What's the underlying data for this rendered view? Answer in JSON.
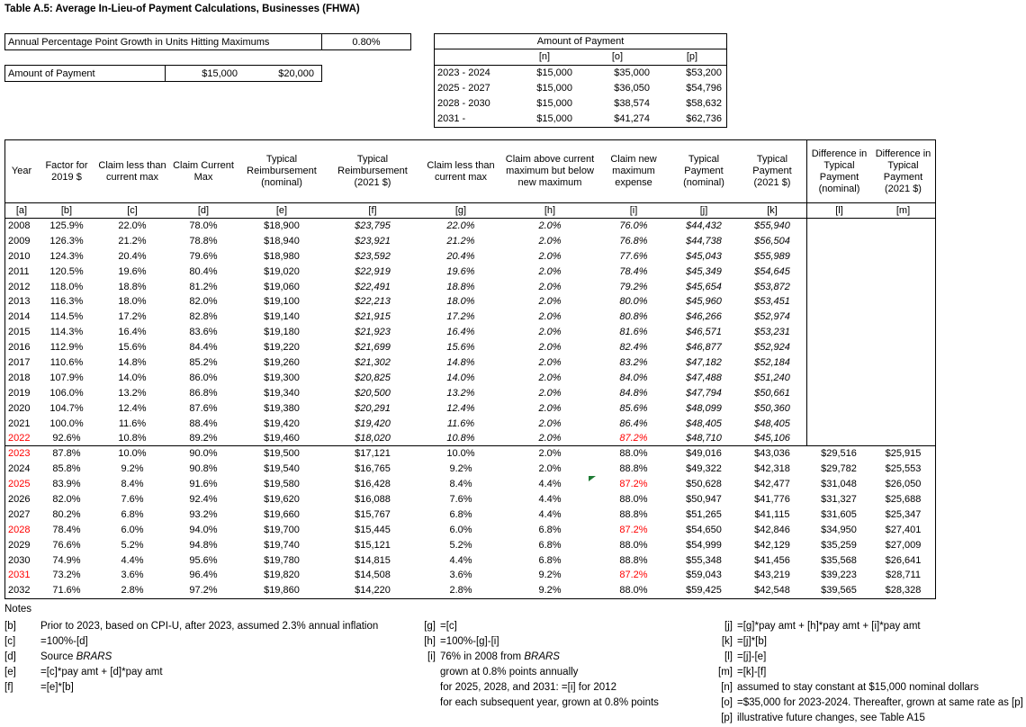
{
  "title": "Table A.5: Average In-Lieu-of Payment Calculations, Businesses (FHWA)",
  "colors": {
    "highlight_red": "#FF0000",
    "marker_green": "#1E7B34"
  },
  "growth_box": {
    "label": "Annual Percentage Point Growth in Units Hitting Maximums",
    "value": "0.80%"
  },
  "payment_box": {
    "label": "Amount of Payment",
    "value1": "$15,000",
    "value2": "$20,000"
  },
  "payment_schedule": {
    "title": "Amount of Payment",
    "columns": [
      "[n]",
      "[o]",
      "[p]"
    ],
    "rows": [
      {
        "period": "2023 - 2024",
        "n": "$15,000",
        "o": "$35,000",
        "p": "$53,200"
      },
      {
        "period": "2025 - 2027",
        "n": "$15,000",
        "o": "$36,050",
        "p": "$54,796"
      },
      {
        "period": "2028 - 2030",
        "n": "$15,000",
        "o": "$38,574",
        "p": "$58,632"
      },
      {
        "period": "2031 -",
        "n": "$15,000",
        "o": "$41,274",
        "p": "$62,736"
      }
    ]
  },
  "main_table": {
    "headers": [
      "Year",
      "Factor for 2019 $",
      "Claim less than current max",
      "Claim Current Max",
      "Typical Reimbursement (nominal)",
      "Typical Reimbursement (2021 $)",
      "Claim less than current max",
      "Claim above current maximum but below new maximum",
      "Claim new maximum expense",
      "Typical Payment (nominal)",
      "Typical Payment (2021 $)",
      "Difference in Typical Payment (nominal)",
      "Difference in Typical Payment (2021 $)"
    ],
    "letters": [
      "[a]",
      "[b]",
      "[c]",
      "[d]",
      "[e]",
      "[f]",
      "[g]",
      "[h]",
      "[i]",
      "[j]",
      "[k]",
      "[l]",
      "[m]"
    ],
    "rows": [
      {
        "year": "2008",
        "cells": [
          "125.9%",
          "22.0%",
          "78.0%",
          "$18,900",
          "$23,795",
          "22.0%",
          "2.0%",
          "76.0%",
          "$44,432",
          "$55,940",
          "",
          ""
        ]
      },
      {
        "year": "2009",
        "cells": [
          "126.3%",
          "21.2%",
          "78.8%",
          "$18,940",
          "$23,921",
          "21.2%",
          "2.0%",
          "76.8%",
          "$44,738",
          "$56,504",
          "",
          ""
        ]
      },
      {
        "year": "2010",
        "cells": [
          "124.3%",
          "20.4%",
          "79.6%",
          "$18,980",
          "$23,592",
          "20.4%",
          "2.0%",
          "77.6%",
          "$45,043",
          "$55,989",
          "",
          ""
        ]
      },
      {
        "year": "2011",
        "cells": [
          "120.5%",
          "19.6%",
          "80.4%",
          "$19,020",
          "$22,919",
          "19.6%",
          "2.0%",
          "78.4%",
          "$45,349",
          "$54,645",
          "",
          ""
        ]
      },
      {
        "year": "2012",
        "cells": [
          "118.0%",
          "18.8%",
          "81.2%",
          "$19,060",
          "$22,491",
          "18.8%",
          "2.0%",
          "79.2%",
          "$45,654",
          "$53,872",
          "",
          ""
        ]
      },
      {
        "year": "2013",
        "cells": [
          "116.3%",
          "18.0%",
          "82.0%",
          "$19,100",
          "$22,213",
          "18.0%",
          "2.0%",
          "80.0%",
          "$45,960",
          "$53,451",
          "",
          ""
        ]
      },
      {
        "year": "2014",
        "cells": [
          "114.5%",
          "17.2%",
          "82.8%",
          "$19,140",
          "$21,915",
          "17.2%",
          "2.0%",
          "80.8%",
          "$46,266",
          "$52,974",
          "",
          ""
        ]
      },
      {
        "year": "2015",
        "cells": [
          "114.3%",
          "16.4%",
          "83.6%",
          "$19,180",
          "$21,923",
          "16.4%",
          "2.0%",
          "81.6%",
          "$46,571",
          "$53,231",
          "",
          ""
        ]
      },
      {
        "year": "2016",
        "cells": [
          "112.9%",
          "15.6%",
          "84.4%",
          "$19,220",
          "$21,699",
          "15.6%",
          "2.0%",
          "82.4%",
          "$46,877",
          "$52,924",
          "",
          ""
        ]
      },
      {
        "year": "2017",
        "cells": [
          "110.6%",
          "14.8%",
          "85.2%",
          "$19,260",
          "$21,302",
          "14.8%",
          "2.0%",
          "83.2%",
          "$47,182",
          "$52,184",
          "",
          ""
        ]
      },
      {
        "year": "2018",
        "cells": [
          "107.9%",
          "14.0%",
          "86.0%",
          "$19,300",
          "$20,825",
          "14.0%",
          "2.0%",
          "84.0%",
          "$47,488",
          "$51,240",
          "",
          ""
        ]
      },
      {
        "year": "2019",
        "cells": [
          "106.0%",
          "13.2%",
          "86.8%",
          "$19,340",
          "$20,500",
          "13.2%",
          "2.0%",
          "84.8%",
          "$47,794",
          "$50,661",
          "",
          ""
        ]
      },
      {
        "year": "2020",
        "cells": [
          "104.7%",
          "12.4%",
          "87.6%",
          "$19,380",
          "$20,291",
          "12.4%",
          "2.0%",
          "85.6%",
          "$48,099",
          "$50,360",
          "",
          ""
        ]
      },
      {
        "year": "2021",
        "cells": [
          "100.0%",
          "11.6%",
          "88.4%",
          "$19,420",
          "$19,420",
          "11.6%",
          "2.0%",
          "86.4%",
          "$48,405",
          "$48,405",
          "",
          ""
        ]
      },
      {
        "year": "2022",
        "year_red": true,
        "i_red": true,
        "cells": [
          "92.6%",
          "10.8%",
          "89.2%",
          "$19,460",
          "$18,020",
          "10.8%",
          "2.0%",
          "87.2%",
          "$48,710",
          "$45,106",
          "",
          ""
        ]
      },
      {
        "year": "2023",
        "year_red": true,
        "cells": [
          "87.8%",
          "10.0%",
          "90.0%",
          "$19,500",
          "$17,121",
          "10.0%",
          "2.0%",
          "88.0%",
          "$49,016",
          "$43,036",
          "$29,516",
          "$25,915"
        ]
      },
      {
        "year": "2024",
        "cells": [
          "85.8%",
          "9.2%",
          "90.8%",
          "$19,540",
          "$16,765",
          "9.2%",
          "2.0%",
          "88.8%",
          "$49,322",
          "$42,318",
          "$29,782",
          "$25,553"
        ]
      },
      {
        "year": "2025",
        "year_red": true,
        "i_red": true,
        "cells": [
          "83.9%",
          "8.4%",
          "91.6%",
          "$19,580",
          "$16,428",
          "8.4%",
          "4.4%",
          "87.2%",
          "$50,628",
          "$42,477",
          "$31,048",
          "$26,050"
        ]
      },
      {
        "year": "2026",
        "cells": [
          "82.0%",
          "7.6%",
          "92.4%",
          "$19,620",
          "$16,088",
          "7.6%",
          "4.4%",
          "88.0%",
          "$50,947",
          "$41,776",
          "$31,327",
          "$25,688"
        ]
      },
      {
        "year": "2027",
        "cells": [
          "80.2%",
          "6.8%",
          "93.2%",
          "$19,660",
          "$15,767",
          "6.8%",
          "4.4%",
          "88.8%",
          "$51,265",
          "$41,115",
          "$31,605",
          "$25,347"
        ]
      },
      {
        "year": "2028",
        "year_red": true,
        "i_red": true,
        "cells": [
          "78.4%",
          "6.0%",
          "94.0%",
          "$19,700",
          "$15,445",
          "6.0%",
          "6.8%",
          "87.2%",
          "$54,650",
          "$42,846",
          "$34,950",
          "$27,401"
        ]
      },
      {
        "year": "2029",
        "cells": [
          "76.6%",
          "5.2%",
          "94.8%",
          "$19,740",
          "$15,121",
          "5.2%",
          "6.8%",
          "88.0%",
          "$54,999",
          "$42,129",
          "$35,259",
          "$27,009"
        ]
      },
      {
        "year": "2030",
        "cells": [
          "74.9%",
          "4.4%",
          "95.6%",
          "$19,780",
          "$14,815",
          "4.4%",
          "6.8%",
          "88.8%",
          "$55,348",
          "$41,456",
          "$35,568",
          "$26,641"
        ]
      },
      {
        "year": "2031",
        "year_red": true,
        "i_red": true,
        "cells": [
          "73.2%",
          "3.6%",
          "96.4%",
          "$19,820",
          "$14,508",
          "3.6%",
          "9.2%",
          "87.2%",
          "$59,043",
          "$43,219",
          "$39,223",
          "$28,711"
        ]
      },
      {
        "year": "2032",
        "cells": [
          "71.6%",
          "2.8%",
          "97.2%",
          "$19,860",
          "$14,220",
          "2.8%",
          "9.2%",
          "88.0%",
          "$59,425",
          "$42,548",
          "$39,565",
          "$28,328"
        ]
      }
    ]
  },
  "notes": {
    "heading": "Notes",
    "col1": [
      {
        "tag": "[b]",
        "text": "Prior to 2023, based on CPI-U, after 2023, assumed 2.3% annual inflation"
      },
      {
        "tag": "[c]",
        "text": "=100%-[d]"
      },
      {
        "tag": "[d]",
        "text": "Source ",
        "italic_text": "BRARS"
      },
      {
        "tag": "[e]",
        "text": "=[c]*pay amt + [d]*pay amt"
      },
      {
        "tag": "[f]",
        "text": "=[e]*[b]"
      }
    ],
    "col2": [
      {
        "tag": "[g]",
        "text": "=[c]"
      },
      {
        "tag": "[h]",
        "text": "=100%-[g]-[i]"
      },
      {
        "tag": "[i]",
        "text": "76% in 2008 from ",
        "italic_text": "BRARS"
      },
      {
        "tag": "",
        "text": "grown at 0.8% points annually"
      },
      {
        "tag": "",
        "text": "for 2025, 2028, and 2031: =[i] for 2012"
      },
      {
        "tag": "",
        "text": "for each subsequent year, grown at 0.8% points"
      }
    ],
    "col3": [
      {
        "tag": "[j]",
        "text": "=[g]*pay amt + [h]*pay amt + [i]*pay amt"
      },
      {
        "tag": "[k]",
        "text": "=[j]*[b]"
      },
      {
        "tag": "[l]",
        "text": "=[j]-[e]"
      },
      {
        "tag": "[m]",
        "text": "=[k]-[f]"
      },
      {
        "tag": "[n]",
        "text": "assumed to stay constant at $15,000 nominal dollars"
      },
      {
        "tag": "[o]",
        "text": "=$35,000 for 2023-2024. Thereafter, grown at same rate as [p]"
      },
      {
        "tag": "[p]",
        "text": "illustrative future changes, see Table A15"
      }
    ]
  }
}
